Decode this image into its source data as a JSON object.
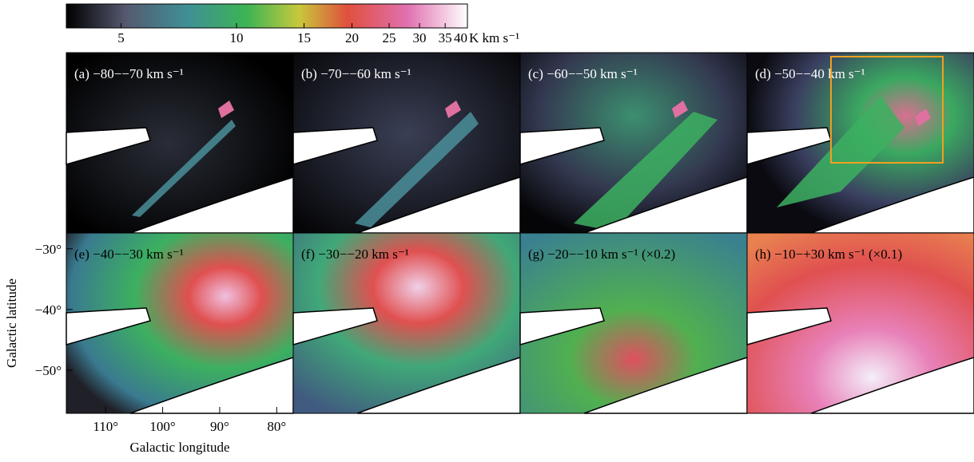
{
  "colorbar": {
    "lim": [
      3.6,
      40
    ],
    "log": true,
    "ticks": [
      5,
      10,
      15,
      20,
      25,
      30,
      35,
      40
    ],
    "unit": "K km s⁻¹"
  },
  "panels": [
    {
      "label": "(a) −80−−70 km s⁻¹"
    },
    {
      "label": "(b) −70−−60 km s⁻¹"
    },
    {
      "label": "(c) −60−−50 km s⁻¹"
    },
    {
      "label": "(d) −50−−40 km s⁻¹"
    },
    {
      "label": "(e) −40−−30 km s⁻¹"
    },
    {
      "label": "(f) −30−−20 km s⁻¹"
    },
    {
      "label": "(g) −20−−10 km s⁻¹ (×0.2)"
    },
    {
      "label": "(h) −10−+30 km s⁻¹ (×0.1)"
    }
  ],
  "axes": {
    "xlabel": "Galactic longitude",
    "ylabel": "Galactic latitude",
    "xlim": [
      116.9,
      77.1
    ],
    "ylim": [
      -27.4,
      -57.1
    ],
    "xticks": [
      {
        "value": 110,
        "label": "110°"
      },
      {
        "value": 100,
        "label": "100°"
      },
      {
        "value": 90,
        "label": "90°"
      },
      {
        "value": 80,
        "label": "80°"
      }
    ],
    "yticks": [
      {
        "value": -30,
        "label": "−30°"
      },
      {
        "value": -40,
        "label": "−40°"
      },
      {
        "value": -50,
        "label": "−50°"
      }
    ]
  }
}
